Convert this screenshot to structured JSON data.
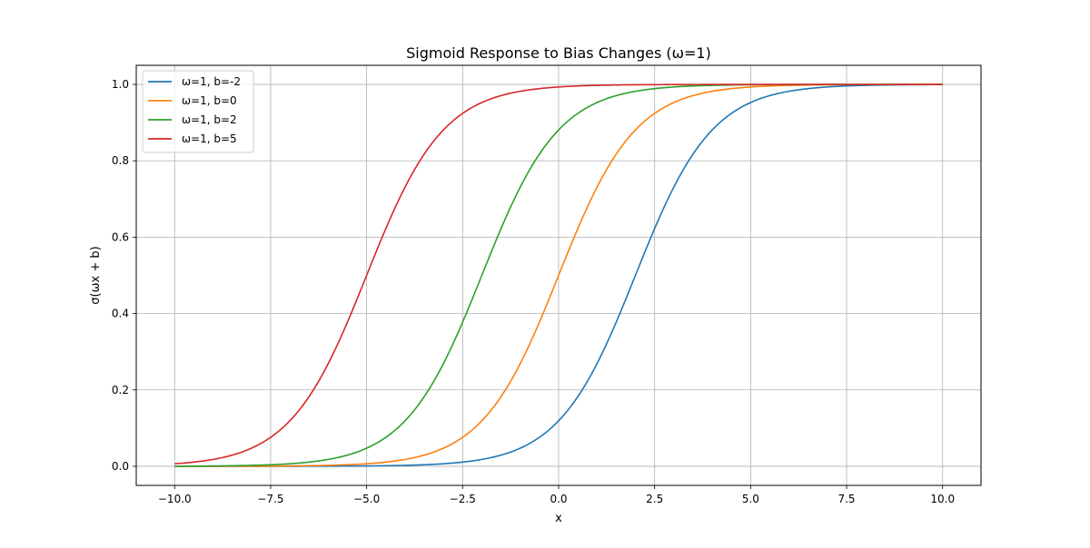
{
  "chart_data": {
    "type": "line",
    "title": "Sigmoid Response to Bias Changes (ω=1)",
    "xlabel": "x",
    "ylabel": "σ(ωx + b)",
    "xlim": [
      -11.0,
      11.0
    ],
    "ylim": [
      -0.05,
      1.05
    ],
    "xticks": [
      -10.0,
      -7.5,
      -5.0,
      -2.5,
      0.0,
      2.5,
      5.0,
      7.5,
      10.0
    ],
    "xtick_labels": [
      "−10.0",
      "−7.5",
      "−5.0",
      "−2.5",
      "0.0",
      "2.5",
      "5.0",
      "7.5",
      "10.0"
    ],
    "yticks": [
      0.0,
      0.2,
      0.4,
      0.6,
      0.8,
      1.0
    ],
    "ytick_labels": [
      "0.0",
      "0.2",
      "0.4",
      "0.6",
      "0.8",
      "1.0"
    ],
    "grid": true,
    "legend_position": "top-left",
    "x": [
      -10,
      -9,
      -8,
      -7,
      -6,
      -5,
      -4,
      -3,
      -2,
      -1,
      0,
      1,
      2,
      3,
      4,
      5,
      6,
      7,
      8,
      9,
      10
    ],
    "series": [
      {
        "name": "ω=1, b=-2",
        "color": "#1f77b4",
        "values": [
          0.0,
          0.0,
          0.0,
          0.0,
          0.0,
          0.001,
          0.002,
          0.007,
          0.018,
          0.047,
          0.119,
          0.269,
          0.5,
          0.731,
          0.881,
          0.953,
          0.982,
          0.993,
          0.998,
          0.999,
          1.0
        ]
      },
      {
        "name": "ω=1, b=0",
        "color": "#ff7f0e",
        "values": [
          0.0,
          0.0,
          0.0,
          0.001,
          0.002,
          0.007,
          0.018,
          0.047,
          0.119,
          0.269,
          0.5,
          0.731,
          0.881,
          0.953,
          0.982,
          0.993,
          0.998,
          0.999,
          1.0,
          1.0,
          1.0
        ]
      },
      {
        "name": "ω=1, b=2",
        "color": "#2ca02c",
        "values": [
          0.0,
          0.001,
          0.002,
          0.007,
          0.018,
          0.047,
          0.119,
          0.269,
          0.5,
          0.731,
          0.881,
          0.953,
          0.982,
          0.993,
          0.998,
          0.999,
          1.0,
          1.0,
          1.0,
          1.0,
          1.0
        ]
      },
      {
        "name": "ω=1, b=5",
        "color": "#d62728",
        "values": [
          0.007,
          0.018,
          0.047,
          0.119,
          0.269,
          0.5,
          0.731,
          0.881,
          0.953,
          0.982,
          0.993,
          0.998,
          0.999,
          1.0,
          1.0,
          1.0,
          1.0,
          1.0,
          1.0,
          1.0,
          1.0
        ]
      }
    ]
  }
}
